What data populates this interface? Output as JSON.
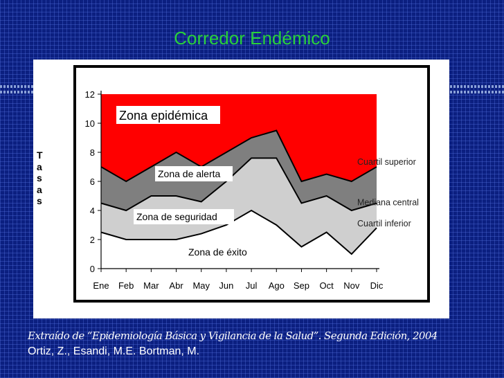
{
  "slide": {
    "title": "Corredor Endémico",
    "source_line": "Extraído de “Epidemiología Básica y Vigilancia de la Salud”. Segunda Edición, 2004",
    "authors_line": "Ortiz, Z., Esandi, M.E. Bortman, M."
  },
  "chart_data": {
    "type": "area",
    "ylabel": "Tasas",
    "categories": [
      "Ene",
      "Feb",
      "Mar",
      "Abr",
      "May",
      "Jun",
      "Jul",
      "Ago",
      "Sep",
      "Oct",
      "Nov",
      "Dic"
    ],
    "ylim": [
      0,
      12
    ],
    "yticks": [
      0,
      2,
      4,
      6,
      8,
      10,
      12
    ],
    "series": [
      {
        "name": "Cuartil inferior",
        "values": [
          2.5,
          2.0,
          2.0,
          2.0,
          2.4,
          3.0,
          4.0,
          3.0,
          1.5,
          2.5,
          1.0,
          2.8
        ]
      },
      {
        "name": "Mediana central",
        "values": [
          4.5,
          4.0,
          5.0,
          5.0,
          4.6,
          6.0,
          7.6,
          7.6,
          4.5,
          5.0,
          4.0,
          4.5
        ]
      },
      {
        "name": "Cuartil superior",
        "values": [
          7.0,
          6.0,
          7.0,
          8.0,
          7.0,
          8.0,
          9.0,
          9.5,
          6.0,
          6.5,
          6.0,
          7.0
        ]
      }
    ],
    "zones": [
      "Zona epidémica",
      "Zona de alerta",
      "Zona de seguridad",
      "Zona de éxito"
    ],
    "colors": {
      "epidemic": "#ff0000",
      "alert": "#7f7f7f",
      "safety": "#cfcfcf",
      "success": "#ffffff"
    },
    "grid": false
  }
}
